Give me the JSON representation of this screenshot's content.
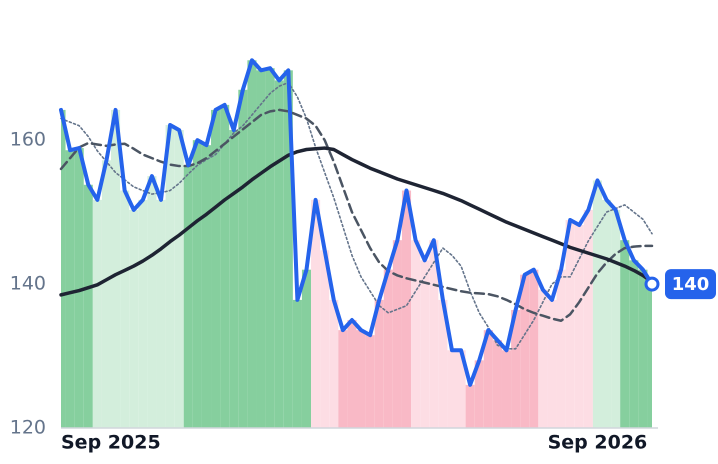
{
  "chart_data": {
    "type": "line",
    "categories": [
      "Sep 2025",
      null,
      null,
      null,
      null,
      null,
      null,
      null,
      null,
      null,
      null,
      null,
      null,
      null,
      null,
      null,
      null,
      null,
      null,
      null,
      null,
      null,
      null,
      null,
      null,
      null,
      null,
      null,
      null,
      null,
      null,
      null,
      null,
      null,
      null,
      null,
      null,
      null,
      null,
      null,
      null,
      null,
      null,
      null,
      null,
      null,
      null,
      null,
      null,
      null,
      null,
      null,
      null,
      null,
      null,
      null,
      null,
      null,
      null,
      "Sep 2026",
      null,
      null,
      null,
      null,
      null,
      null
    ],
    "series": [
      {
        "color": "#2563eb",
        "style": "solid",
        "values": [
          164.2,
          158.6,
          158.9,
          153.8,
          151.7,
          157.2,
          164.2,
          153,
          150.3,
          151.7,
          155,
          151.7,
          162.1,
          161.4,
          156.5,
          160,
          159.3,
          164.2,
          164.9,
          161.4,
          167,
          171.1,
          169.7,
          170,
          168.3,
          169.7,
          137.8,
          142,
          151.7,
          144.7,
          137.8,
          133.6,
          135,
          133.6,
          132.9,
          137.8,
          142,
          146.1,
          153,
          146.1,
          143.3,
          146.1,
          137.8,
          130.8,
          130.8,
          126,
          129.4,
          133.6,
          132.2,
          130.8,
          136.4,
          141.3,
          142,
          139.2,
          137.8,
          142,
          148.9,
          148.2,
          150.3,
          154.4,
          151.7,
          150.3,
          146.1,
          143.3,
          142,
          140
        ]
      },
      {
        "color": "#1e2433",
        "style": "solid",
        "values": [
          138.5,
          138.8,
          139.1,
          139.5,
          139.9,
          140.6,
          141.3,
          141.9,
          142.5,
          143.2,
          144,
          144.9,
          145.9,
          146.8,
          147.8,
          148.8,
          149.7,
          150.7,
          151.7,
          152.6,
          153.5,
          154.5,
          155.4,
          156.3,
          157.1,
          157.9,
          158.4,
          158.7,
          158.8,
          158.9,
          158.7,
          158,
          157.3,
          156.7,
          156.1,
          155.6,
          155.1,
          154.6,
          154.2,
          153.8,
          153.4,
          153,
          152.6,
          152.1,
          151.6,
          151,
          150.4,
          149.8,
          149.2,
          148.6,
          148.1,
          147.6,
          147.1,
          146.6,
          146.1,
          145.6,
          145.1,
          144.7,
          144.3,
          143.9,
          143.5,
          143,
          142.5,
          141.9,
          141.2,
          140.3
        ]
      },
      {
        "color": "#4b5563",
        "style": "dashed",
        "values": [
          156,
          157.5,
          159,
          159.6,
          159.4,
          159.2,
          159.4,
          159.5,
          158.8,
          158,
          157.5,
          157,
          156.6,
          156.4,
          156.4,
          156.8,
          157.5,
          158.5,
          159.5,
          160.5,
          161.5,
          162.5,
          163.5,
          164,
          164.2,
          164,
          163.5,
          163,
          162,
          160,
          157,
          153.5,
          150,
          147.5,
          145,
          143,
          141.8,
          141.2,
          140.8,
          140.5,
          140.2,
          139.9,
          139.6,
          139.3,
          139,
          138.8,
          138.7,
          138.6,
          138.3,
          137.8,
          137.2,
          136.5,
          136,
          135.6,
          135.2,
          134.9,
          135.8,
          137.5,
          139.5,
          141.5,
          143,
          144.2,
          145,
          145.2,
          145.3,
          145.3
        ]
      },
      {
        "color": "#64748b",
        "style": "dotted",
        "values": [
          163,
          162.5,
          162,
          160.5,
          158.5,
          157,
          155.5,
          154.5,
          153.5,
          153,
          152.5,
          152.7,
          153,
          154,
          155.3,
          156.5,
          157.3,
          158,
          159.5,
          161,
          162,
          163.5,
          165,
          166.5,
          167.5,
          168,
          166,
          163,
          159,
          155.5,
          152,
          148,
          144,
          141,
          139,
          137,
          136,
          136.5,
          137,
          139,
          141,
          143,
          145,
          144,
          142.5,
          139,
          136,
          134,
          131.5,
          131,
          131,
          133,
          135,
          137.5,
          140,
          141,
          141,
          143.5,
          146,
          148,
          150,
          150.5,
          151,
          150,
          149,
          147
        ]
      }
    ],
    "regions": [
      {
        "start": 0,
        "end": 3,
        "color": "#86cf9e"
      },
      {
        "start": 4,
        "end": 13,
        "color": "#d3eedc"
      },
      {
        "start": 14,
        "end": 27,
        "color": "#86cf9e"
      },
      {
        "start": 28,
        "end": 30,
        "color": "#fddde4"
      },
      {
        "start": 31,
        "end": 38,
        "color": "#f9b9c6"
      },
      {
        "start": 39,
        "end": 44,
        "color": "#fddde4"
      },
      {
        "start": 45,
        "end": 52,
        "color": "#f9b9c6"
      },
      {
        "start": 53,
        "end": 58,
        "color": "#fddde4"
      },
      {
        "start": 59,
        "end": 61,
        "color": "#d3eedc"
      },
      {
        "start": 62,
        "end": 65,
        "color": "#86cf9e"
      }
    ],
    "ylim": [
      120,
      176
    ],
    "yticks": [
      120,
      140,
      160
    ],
    "grid": false
  }
}
